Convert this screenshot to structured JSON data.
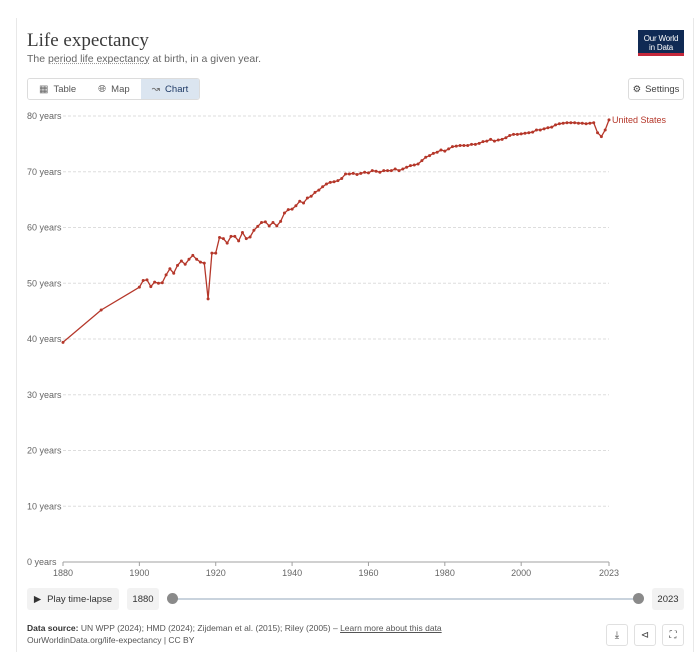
{
  "header": {
    "title": "Life expectancy",
    "subtitle_pre": "The ",
    "subtitle_link": "period life expectancy",
    "subtitle_post": " at birth, in a given year.",
    "logo_line1": "Our World",
    "logo_line2": "in Data"
  },
  "tabs": [
    {
      "label": "Table",
      "icon": "table-icon"
    },
    {
      "label": "Map",
      "icon": "globe-icon"
    },
    {
      "label": "Chart",
      "icon": "line-chart-icon"
    }
  ],
  "settings_label": "Settings",
  "chart_data": {
    "type": "line",
    "title": "Life expectancy",
    "x_ticks": [
      1880,
      1900,
      1920,
      1940,
      1960,
      1980,
      2000,
      2023
    ],
    "y_ticks": [
      0,
      10,
      20,
      30,
      40,
      50,
      60,
      70,
      80
    ],
    "y_tick_suffix": " years",
    "xlim": [
      1880,
      2023
    ],
    "ylim": [
      0,
      80
    ],
    "line_color": "#b5372a",
    "series": [
      {
        "name": "United States",
        "points": [
          [
            1880,
            39.4
          ],
          [
            1890,
            45.2
          ],
          [
            1900,
            49.3
          ],
          [
            1901,
            50.5
          ],
          [
            1902,
            50.6
          ],
          [
            1903,
            49.4
          ],
          [
            1904,
            50.2
          ],
          [
            1905,
            50.0
          ],
          [
            1906,
            50.1
          ],
          [
            1907,
            51.5
          ],
          [
            1908,
            52.6
          ],
          [
            1909,
            51.8
          ],
          [
            1910,
            53.2
          ],
          [
            1911,
            54.0
          ],
          [
            1912,
            53.4
          ],
          [
            1913,
            54.3
          ],
          [
            1914,
            55.0
          ],
          [
            1915,
            54.3
          ],
          [
            1916,
            53.8
          ],
          [
            1917,
            53.6
          ],
          [
            1918,
            47.2
          ],
          [
            1919,
            55.4
          ],
          [
            1920,
            55.4
          ],
          [
            1921,
            58.2
          ],
          [
            1922,
            58.0
          ],
          [
            1923,
            57.2
          ],
          [
            1924,
            58.4
          ],
          [
            1925,
            58.4
          ],
          [
            1926,
            57.6
          ],
          [
            1927,
            59.1
          ],
          [
            1928,
            58.0
          ],
          [
            1929,
            58.3
          ],
          [
            1930,
            59.5
          ],
          [
            1931,
            60.2
          ],
          [
            1932,
            60.9
          ],
          [
            1933,
            61.0
          ],
          [
            1934,
            60.3
          ],
          [
            1935,
            60.9
          ],
          [
            1936,
            60.3
          ],
          [
            1937,
            61.1
          ],
          [
            1938,
            62.6
          ],
          [
            1939,
            63.2
          ],
          [
            1940,
            63.3
          ],
          [
            1941,
            63.9
          ],
          [
            1942,
            64.7
          ],
          [
            1943,
            64.4
          ],
          [
            1944,
            65.3
          ],
          [
            1945,
            65.6
          ],
          [
            1946,
            66.3
          ],
          [
            1947,
            66.7
          ],
          [
            1948,
            67.3
          ],
          [
            1949,
            67.8
          ],
          [
            1950,
            68.1
          ],
          [
            1951,
            68.2
          ],
          [
            1952,
            68.4
          ],
          [
            1953,
            68.8
          ],
          [
            1954,
            69.6
          ],
          [
            1955,
            69.6
          ],
          [
            1956,
            69.7
          ],
          [
            1957,
            69.5
          ],
          [
            1958,
            69.7
          ],
          [
            1959,
            69.9
          ],
          [
            1960,
            69.8
          ],
          [
            1961,
            70.2
          ],
          [
            1962,
            70.1
          ],
          [
            1963,
            69.9
          ],
          [
            1964,
            70.2
          ],
          [
            1965,
            70.2
          ],
          [
            1966,
            70.2
          ],
          [
            1967,
            70.5
          ],
          [
            1968,
            70.2
          ],
          [
            1969,
            70.5
          ],
          [
            1970,
            70.8
          ],
          [
            1971,
            71.1
          ],
          [
            1972,
            71.2
          ],
          [
            1973,
            71.4
          ],
          [
            1974,
            72.0
          ],
          [
            1975,
            72.6
          ],
          [
            1976,
            72.9
          ],
          [
            1977,
            73.3
          ],
          [
            1978,
            73.5
          ],
          [
            1979,
            73.9
          ],
          [
            1980,
            73.7
          ],
          [
            1981,
            74.1
          ],
          [
            1982,
            74.5
          ],
          [
            1983,
            74.6
          ],
          [
            1984,
            74.7
          ],
          [
            1985,
            74.7
          ],
          [
            1986,
            74.7
          ],
          [
            1987,
            74.9
          ],
          [
            1988,
            74.9
          ],
          [
            1989,
            75.1
          ],
          [
            1990,
            75.4
          ],
          [
            1991,
            75.5
          ],
          [
            1992,
            75.8
          ],
          [
            1993,
            75.5
          ],
          [
            1994,
            75.7
          ],
          [
            1995,
            75.8
          ],
          [
            1996,
            76.1
          ],
          [
            1997,
            76.5
          ],
          [
            1998,
            76.7
          ],
          [
            1999,
            76.7
          ],
          [
            2000,
            76.8
          ],
          [
            2001,
            76.9
          ],
          [
            2002,
            77.0
          ],
          [
            2003,
            77.1
          ],
          [
            2004,
            77.5
          ],
          [
            2005,
            77.5
          ],
          [
            2006,
            77.7
          ],
          [
            2007,
            77.9
          ],
          [
            2008,
            78.0
          ],
          [
            2009,
            78.4
          ],
          [
            2010,
            78.6
          ],
          [
            2011,
            78.7
          ],
          [
            2012,
            78.8
          ],
          [
            2013,
            78.8
          ],
          [
            2014,
            78.8
          ],
          [
            2015,
            78.7
          ],
          [
            2016,
            78.7
          ],
          [
            2017,
            78.6
          ],
          [
            2018,
            78.7
          ],
          [
            2019,
            78.8
          ],
          [
            2020,
            77.0
          ],
          [
            2021,
            76.3
          ],
          [
            2022,
            77.5
          ],
          [
            2023,
            79.3
          ]
        ]
      }
    ]
  },
  "timeline": {
    "play_label": "Play time-lapse",
    "start_year": "1880",
    "end_year": "2023",
    "start_fraction": 0,
    "end_fraction": 1
  },
  "footer": {
    "source_label": "Data source:",
    "source_text": " UN WPP (2024); HMD (2024); Zijdeman et al. (2015); Riley (2005) – ",
    "learn_more": "Learn more about this data",
    "url_line": "OurWorldinData.org/life-expectancy | CC BY"
  }
}
